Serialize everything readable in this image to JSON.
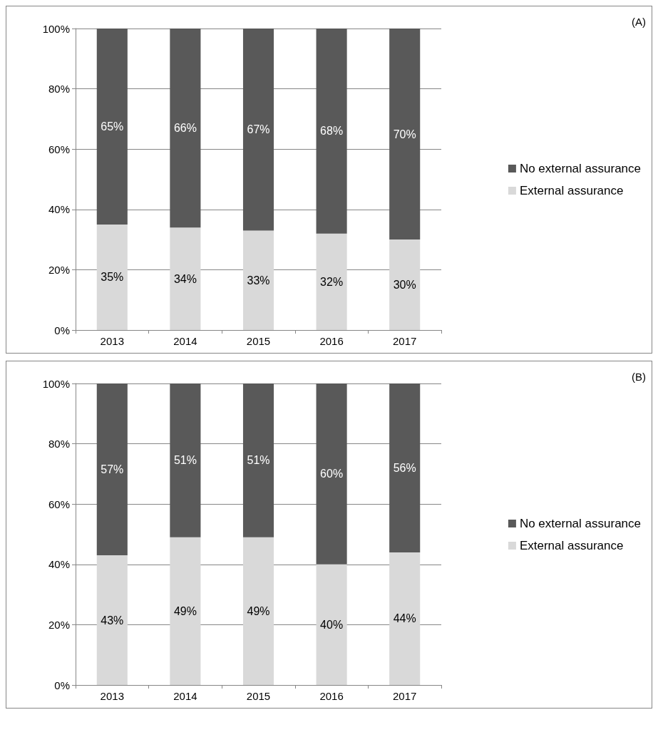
{
  "chart_data": [
    {
      "type": "bar",
      "annotations": [
        "(A)"
      ],
      "categories": [
        "2013",
        "2014",
        "2015",
        "2016",
        "2017"
      ],
      "stacked": true,
      "grid": "y",
      "legend": "right",
      "ylim": [
        0,
        100
      ],
      "yticks": [
        {
          "value": 0,
          "label": "0%"
        },
        {
          "value": 20,
          "label": "20%"
        },
        {
          "value": 40,
          "label": "40%"
        },
        {
          "value": 60,
          "label": "60%"
        },
        {
          "value": 80,
          "label": "80%"
        },
        {
          "value": 100,
          "label": "100%"
        }
      ],
      "series": [
        {
          "name": "External assurance",
          "color": "#d9d9d9",
          "values": [
            35,
            34,
            33,
            32,
            30
          ],
          "value_labels": [
            "35%",
            "34%",
            "33%",
            "32%",
            "30%"
          ]
        },
        {
          "name": "No external assurance",
          "color": "#595959",
          "values": [
            65,
            66,
            67,
            68,
            70
          ],
          "value_labels": [
            "65%",
            "66%",
            "67%",
            "68%",
            "70%"
          ]
        }
      ]
    },
    {
      "type": "bar",
      "annotations": [
        "(B)"
      ],
      "categories": [
        "2013",
        "2014",
        "2015",
        "2016",
        "2017"
      ],
      "stacked": true,
      "grid": "y",
      "legend": "right",
      "ylim": [
        0,
        100
      ],
      "yticks": [
        {
          "value": 0,
          "label": "0%"
        },
        {
          "value": 20,
          "label": "20%"
        },
        {
          "value": 40,
          "label": "40%"
        },
        {
          "value": 60,
          "label": "60%"
        },
        {
          "value": 80,
          "label": "80%"
        },
        {
          "value": 100,
          "label": "100%"
        }
      ],
      "series": [
        {
          "name": "External assurance",
          "color": "#d9d9d9",
          "values": [
            43,
            49,
            49,
            40,
            44
          ],
          "value_labels": [
            "43%",
            "49%",
            "49%",
            "40%",
            "44%"
          ]
        },
        {
          "name": "No external assurance",
          "color": "#595959",
          "values": [
            57,
            51,
            51,
            60,
            56
          ],
          "value_labels": [
            "57%",
            "51%",
            "51%",
            "60%",
            "56%"
          ]
        }
      ]
    }
  ]
}
